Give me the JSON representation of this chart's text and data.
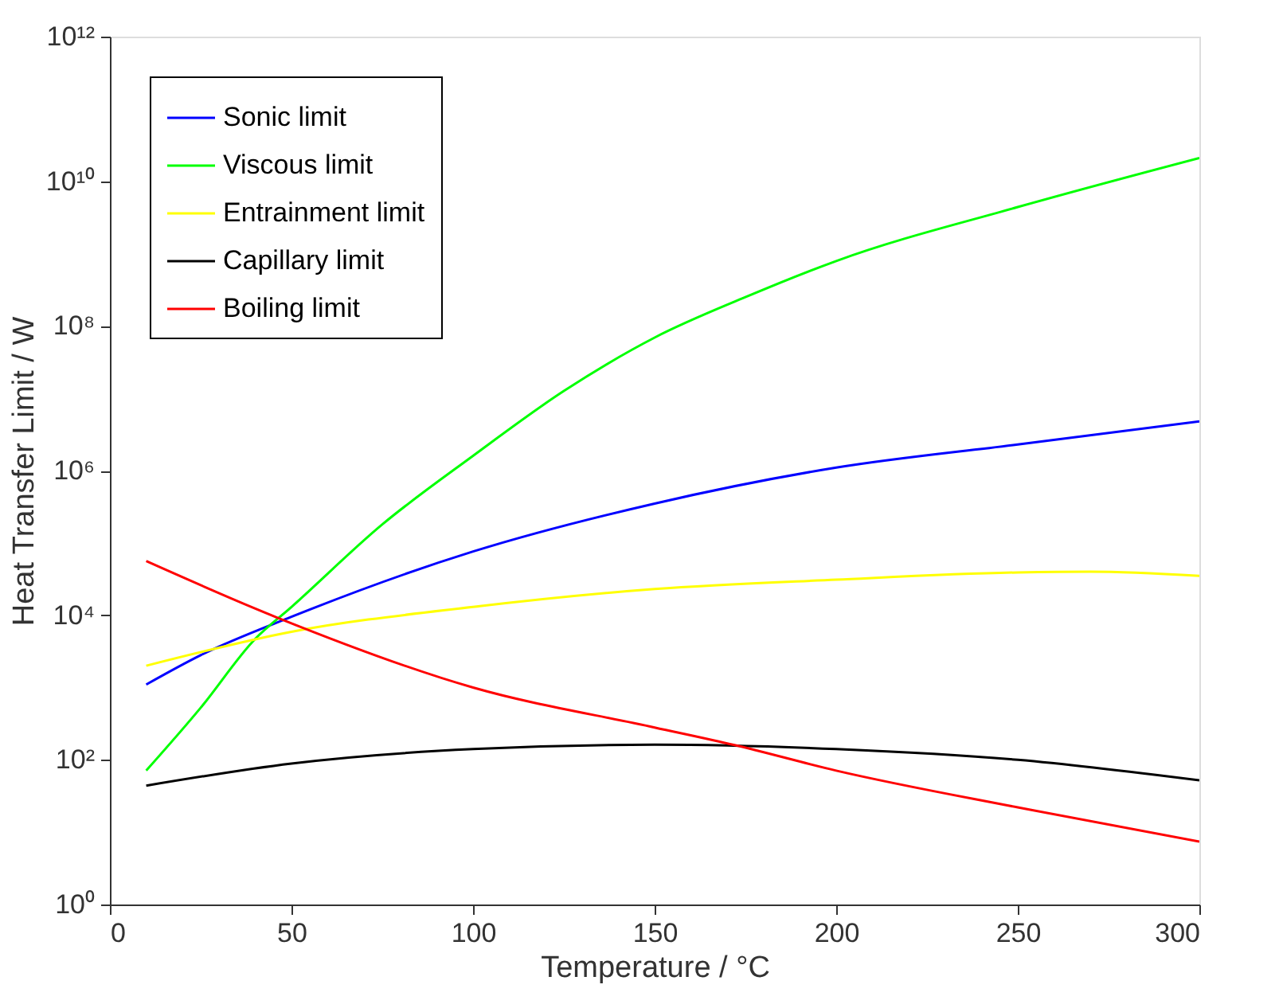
{
  "chart_data": {
    "type": "line",
    "xlabel": "Temperature / °C",
    "ylabel": "Heat Transfer Limit / W",
    "log": "y",
    "xlim": [
      0,
      300
    ],
    "xticks": [
      0,
      50,
      100,
      150,
      200,
      250,
      300
    ],
    "ylim": [
      1,
      1000000000000.0
    ],
    "yticks": [
      {
        "value": 1,
        "label": "10⁰"
      },
      {
        "value": 100,
        "label": "10²"
      },
      {
        "value": 10000,
        "label": "10⁴"
      },
      {
        "value": 1000000,
        "label": "10⁶"
      },
      {
        "value": 100000000,
        "label": "10⁸"
      },
      {
        "value": 10000000000,
        "label": "10¹⁰"
      },
      {
        "value": 1000000000000,
        "label": "10¹²"
      }
    ],
    "grid": false,
    "legend": "top left",
    "marker": "none",
    "line_style": "solid",
    "series": [
      {
        "name": "Sonic limit",
        "color": "#0000ff",
        "x": [
          10,
          25,
          50,
          100,
          150,
          200,
          250,
          300
        ],
        "values": [
          1100,
          2800,
          9500,
          76000,
          350000,
          1100000,
          2300000,
          4800000
        ]
      },
      {
        "name": "Viscous limit",
        "color": "#00ff00",
        "x": [
          10,
          25,
          40,
          50,
          75,
          100,
          125,
          150,
          175,
          200,
          250,
          300
        ],
        "values": [
          71,
          525,
          4700,
          13000,
          180000,
          1600000,
          12600000,
          69000000,
          250000000,
          790000000,
          4400000000,
          21000000000
        ]
      },
      {
        "name": "Entrainment limit",
        "color": "#ffff00",
        "x": [
          10,
          50,
          100,
          150,
          200,
          250,
          270,
          300
        ],
        "values": [
          2000,
          5900,
          13000,
          23000,
          31000,
          39000,
          40000,
          35000
        ]
      },
      {
        "name": "Capillary limit",
        "color": "#000000",
        "x": [
          10,
          50,
          100,
          150,
          200,
          250,
          300
        ],
        "values": [
          44,
          89,
          141,
          162,
          141,
          100,
          52
        ]
      },
      {
        "name": "Boiling limit",
        "color": "#ff0000",
        "x": [
          10,
          46,
          100,
          150,
          172,
          200,
          250,
          300
        ],
        "values": [
          56000,
          9300,
          1000,
          280,
          160,
          71,
          22,
          7.4
        ]
      }
    ]
  }
}
